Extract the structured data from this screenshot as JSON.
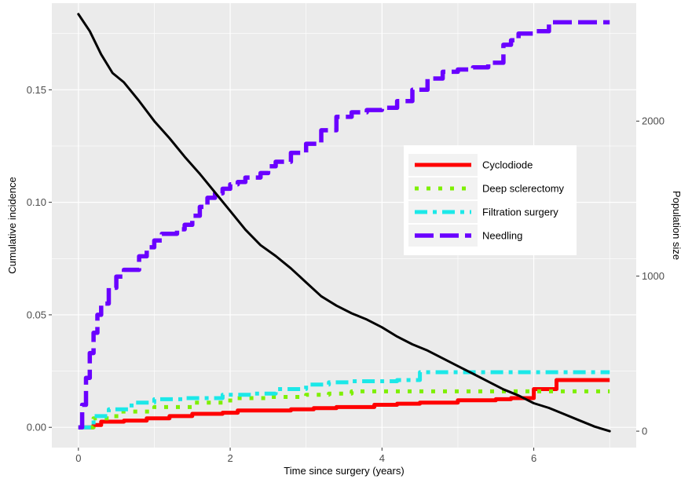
{
  "chart_data": {
    "type": "line",
    "xlabel": "Time since surgery (years)",
    "ylabel": "Cumulative incidence",
    "y2label": "Population size",
    "xlim": [
      -0.35,
      7.35
    ],
    "ylim": [
      -0.009,
      0.1885
    ],
    "y2lim": [
      -106,
      2761
    ],
    "xticks": [
      0,
      2,
      4,
      6
    ],
    "yticks": [
      0.0,
      0.05,
      0.1,
      0.15
    ],
    "ytick_labels": [
      "0.00",
      "0.05",
      "0.10",
      "0.15"
    ],
    "y2ticks": [
      0,
      1000,
      2000
    ],
    "y2tick_labels": [
      "0",
      "1000",
      "2000"
    ],
    "grid": true,
    "legend_position": "right",
    "series": [
      {
        "name": "Cyclodiode",
        "color": "#ff0000",
        "style": "solid",
        "x": [
          0,
          0.2,
          0.3,
          0.6,
          0.9,
          1.2,
          1.5,
          1.9,
          2.1,
          2.8,
          3.1,
          3.4,
          3.9,
          4.2,
          4.5,
          5.0,
          5.5,
          5.7,
          6.0,
          6.3,
          7.0
        ],
        "y": [
          0,
          0.001,
          0.0025,
          0.003,
          0.004,
          0.005,
          0.006,
          0.0065,
          0.0075,
          0.008,
          0.0085,
          0.009,
          0.01,
          0.0105,
          0.011,
          0.012,
          0.0125,
          0.013,
          0.017,
          0.021,
          0.021
        ]
      },
      {
        "name": "Deep sclerectomy",
        "color": "#7ef000",
        "style": "dotted",
        "x": [
          0,
          0.2,
          0.5,
          1.0,
          1.5,
          2.0,
          2.5,
          3.0,
          3.3,
          3.6,
          4.0,
          5.0,
          6.0,
          7.0
        ],
        "y": [
          0,
          0.004,
          0.007,
          0.009,
          0.011,
          0.013,
          0.0135,
          0.0145,
          0.015,
          0.016,
          0.016,
          0.016,
          0.016,
          0.016
        ]
      },
      {
        "name": "Filtration surgery",
        "color": "#1ce8e8",
        "style": "dashdot",
        "x": [
          0,
          0.2,
          0.4,
          0.7,
          1.0,
          1.4,
          1.9,
          2.3,
          2.6,
          3.0,
          3.3,
          3.6,
          4.2,
          4.5,
          5.0,
          6.0,
          7.0
        ],
        "y": [
          0,
          0.005,
          0.008,
          0.011,
          0.0125,
          0.013,
          0.0145,
          0.015,
          0.017,
          0.019,
          0.02,
          0.0205,
          0.021,
          0.0245,
          0.0245,
          0.0245,
          0.0245
        ]
      },
      {
        "name": "Needling",
        "color": "#6a00ff",
        "style": "longdash",
        "x": [
          0,
          0.05,
          0.1,
          0.15,
          0.2,
          0.25,
          0.3,
          0.4,
          0.5,
          0.6,
          0.8,
          0.9,
          1.0,
          1.1,
          1.3,
          1.4,
          1.5,
          1.6,
          1.7,
          1.8,
          1.9,
          2.0,
          2.1,
          2.2,
          2.4,
          2.5,
          2.6,
          2.8,
          3.0,
          3.2,
          3.4,
          3.6,
          3.8,
          4.0,
          4.2,
          4.4,
          4.6,
          4.8,
          5.0,
          5.2,
          5.4,
          5.6,
          5.7,
          5.8,
          6.0,
          6.2,
          7.0
        ],
        "y": [
          0,
          0.01,
          0.022,
          0.033,
          0.042,
          0.05,
          0.055,
          0.062,
          0.067,
          0.07,
          0.076,
          0.08,
          0.083,
          0.086,
          0.088,
          0.09,
          0.094,
          0.098,
          0.102,
          0.104,
          0.106,
          0.108,
          0.109,
          0.111,
          0.113,
          0.116,
          0.118,
          0.122,
          0.126,
          0.132,
          0.138,
          0.14,
          0.141,
          0.142,
          0.145,
          0.15,
          0.155,
          0.158,
          0.159,
          0.16,
          0.162,
          0.17,
          0.172,
          0.175,
          0.176,
          0.18,
          0.18
        ]
      },
      {
        "name": "",
        "color": "#000000",
        "style": "solid",
        "axis": "right",
        "x": [
          0,
          0.15,
          0.3,
          0.45,
          0.6,
          0.8,
          1.0,
          1.2,
          1.4,
          1.6,
          1.8,
          2.0,
          2.2,
          2.4,
          2.6,
          2.8,
          3.0,
          3.2,
          3.4,
          3.6,
          3.8,
          4.0,
          4.2,
          4.4,
          4.6,
          4.8,
          5.0,
          5.2,
          5.4,
          5.6,
          5.8,
          6.0,
          6.2,
          6.4,
          6.6,
          6.8,
          7.0
        ],
        "y": [
          2690,
          2580,
          2430,
          2310,
          2250,
          2130,
          2000,
          1890,
          1770,
          1660,
          1540,
          1420,
          1300,
          1200,
          1130,
          1050,
          960,
          870,
          810,
          760,
          720,
          670,
          610,
          560,
          520,
          470,
          420,
          370,
          320,
          270,
          230,
          180,
          150,
          110,
          70,
          30,
          0
        ]
      }
    ]
  }
}
